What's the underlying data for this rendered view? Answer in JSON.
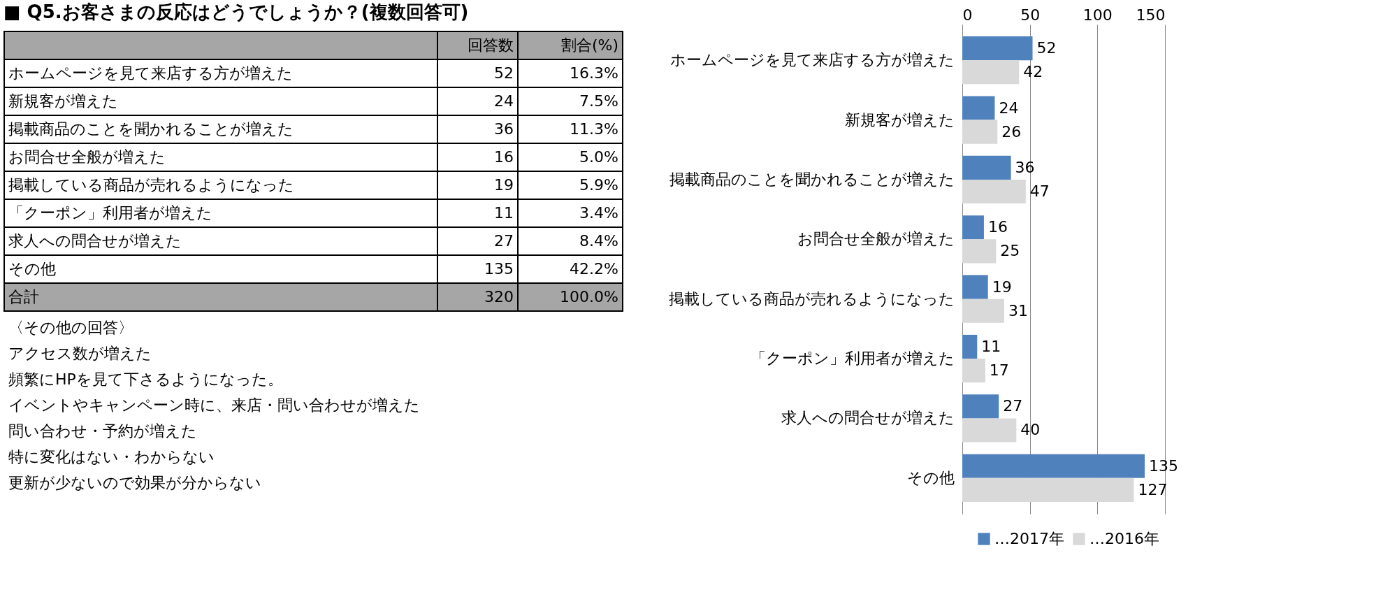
{
  "chart_data": [
    {
      "type": "other",
      "title": "■ Q5.お客さまの反応はどうでしょうか？(複数回答可)",
      "categories": [
        "ホームページを見て来店する方が増えた",
        "新規客が増えた",
        "掲載商品のことを聞かれることが増えた",
        "お問合せ全般が増えた",
        "掲載している商品が売れるようになった",
        "「クーポン」利用者が増えた",
        "求人への問合せが増えた",
        "その他",
        "合計"
      ],
      "series": [
        {
          "name": "回答数",
          "color": "#000000",
          "values": [
            52,
            24,
            36,
            16,
            19,
            11,
            27,
            135,
            320
          ],
          "value_labels": [
            "52",
            "24",
            "36",
            "16",
            "19",
            "11",
            "27",
            "135",
            "320"
          ]
        },
        {
          "name": "割合(%)",
          "color": "#000000",
          "values": [
            16.3,
            7.5,
            11.3,
            5.0,
            5.9,
            3.4,
            8.4,
            42.2,
            100.0
          ],
          "value_labels": [
            "16.3%",
            "7.5%",
            "11.3%",
            "5.0%",
            "5.9%",
            "3.4%",
            "8.4%",
            "42.2%",
            "100.0%"
          ]
        }
      ],
      "annotations": [
        "〈その他の回答〉",
        "アクセス数が増えた",
        "頻繁にHPを見て下さるようになった。",
        "イベントやキャンペーン時に、来店・問い合わせが増えた",
        "問い合わせ・予約が増えた",
        "特に変化はない・わからない",
        "更新が少ないので効果が分からない"
      ]
    },
    {
      "type": "bar",
      "orientation": "horizontal",
      "categories": [
        "ホームページを見て来店する方が増えた",
        "新規客が増えた",
        "掲載商品のことを聞かれることが増えた",
        "お問合せ全般が増えた",
        "掲載している商品が売れるようになった",
        "「クーポン」利用者が増えた",
        "求人への問合せが増えた",
        "その他"
      ],
      "series": [
        {
          "name": "…2017年",
          "color": "#4f81bd",
          "values": [
            52,
            24,
            36,
            16,
            19,
            11,
            27,
            135
          ]
        },
        {
          "name": "…2016年",
          "color": "#d9d9d9",
          "values": [
            42,
            26,
            47,
            25,
            31,
            17,
            40,
            127
          ]
        }
      ],
      "xlim": [
        0,
        150
      ],
      "xticks": [
        0,
        50,
        100,
        150
      ],
      "grid": "x",
      "data_labels": true,
      "legend": "bottom"
    }
  ]
}
